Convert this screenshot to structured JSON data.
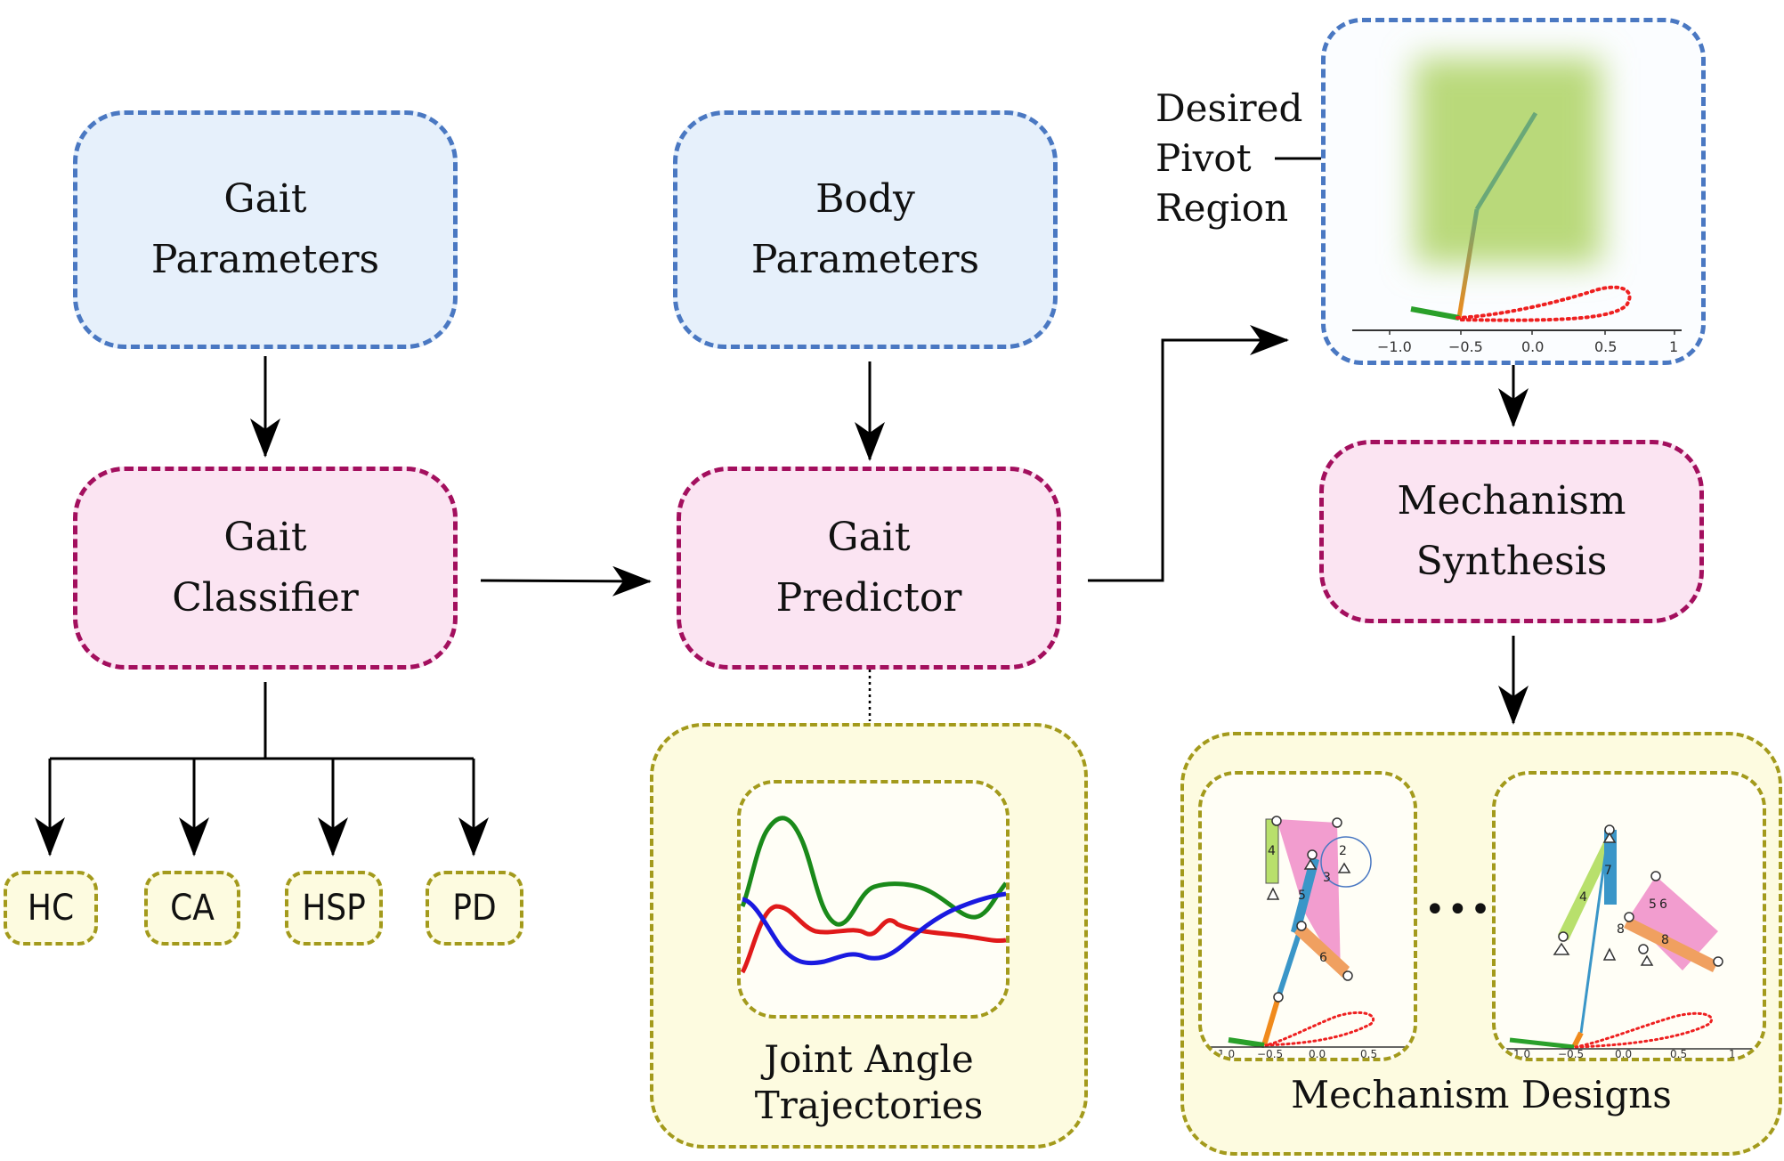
{
  "nodes": {
    "gait_parameters": [
      "Gait",
      "Parameters"
    ],
    "body_parameters": [
      "Body",
      "Parameters"
    ],
    "gait_classifier": [
      "Gait",
      "Classifier"
    ],
    "gait_predictor": [
      "Gait",
      "Predictor"
    ],
    "mechanism_synthesis": [
      "Mechanism",
      "Synthesis"
    ]
  },
  "classes": [
    "HC",
    "CA",
    "HSP",
    "PD"
  ],
  "captions": {
    "joint_angle": [
      "Joint Angle",
      "Trajectories"
    ],
    "mechanism_designs": "Mechanism Designs",
    "desired_pivot": [
      "Desired",
      "Pivot",
      "Region"
    ],
    "ellipsis": "•••"
  },
  "axis_ticks": {
    "pivot_plot": [
      "−1.0",
      "−0.5",
      "0.0",
      "0.5",
      "1"
    ],
    "design_plot": [
      "−1.0",
      "−0.5",
      "0.0",
      "0.5",
      "1"
    ]
  },
  "mechanism_link_numbers": {
    "design_1": [
      "4",
      "5",
      "3",
      "6",
      "2"
    ],
    "design_2": [
      "7",
      "4",
      "5",
      "6",
      "8",
      "8"
    ]
  },
  "colors": {
    "input_fill": "#e6f0fb",
    "input_border": "#4a78c2",
    "process_fill": "#fbe4f2",
    "process_border": "#a30f5e",
    "output_fill": "#fdfbe0",
    "output_border": "#a39a1c",
    "curve_green": "#1a8a1a",
    "curve_red": "#e01a1a",
    "curve_blue": "#1a1ae0"
  }
}
